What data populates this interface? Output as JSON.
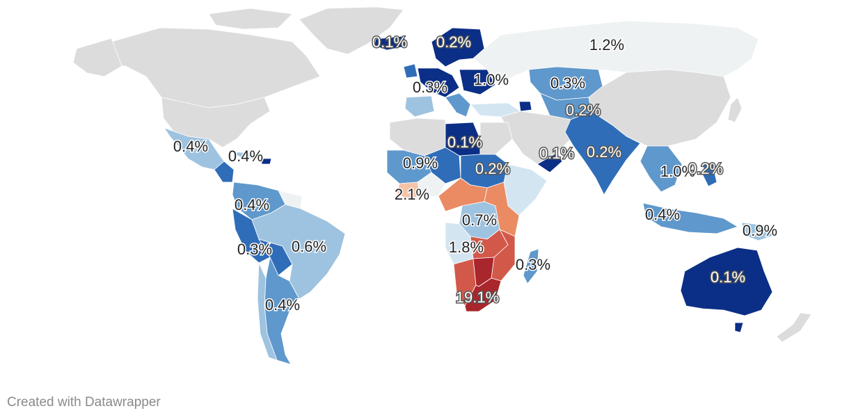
{
  "credit": "Created with Datawrapper",
  "colors": {
    "no_data": "#dcdcdc",
    "lowest": "#0b2f86",
    "low": "#2f6db8",
    "mid_low": "#5f98cc",
    "mid": "#9ec3e0",
    "pale": "#d4e5f2",
    "neutral": "#eef2f2",
    "warm_pale": "#f6c3a6",
    "warm": "#ea8b63",
    "high": "#d2594a",
    "highest": "#a9262c"
  },
  "labels": [
    {
      "text": "0.1%",
      "region": "iceland",
      "style": "light"
    },
    {
      "text": "0.2%",
      "region": "scandinavia",
      "style": "light"
    },
    {
      "text": "1.2%",
      "region": "russia",
      "style": "dark"
    },
    {
      "text": "1.0%",
      "region": "eastern-europe",
      "style": "dark"
    },
    {
      "text": "0.3%",
      "region": "western-europe",
      "style": "dark"
    },
    {
      "text": "0.3%",
      "region": "kazakhstan",
      "style": "dark"
    },
    {
      "text": "0.2%",
      "region": "central-asia",
      "style": "light"
    },
    {
      "text": "0.4%",
      "region": "mexico",
      "style": "dark"
    },
    {
      "text": "0.4%",
      "region": "caribbean",
      "style": "dark"
    },
    {
      "text": "0.1%",
      "region": "libya",
      "style": "light"
    },
    {
      "text": "0.9%",
      "region": "west-africa",
      "style": "dark"
    },
    {
      "text": "0.2%",
      "region": "sudan",
      "style": "light"
    },
    {
      "text": "0.1%",
      "region": "arabia",
      "style": "light"
    },
    {
      "text": "0.2%",
      "region": "india",
      "style": "light"
    },
    {
      "text": "1.0%",
      "region": "southeast-asia",
      "style": "dark"
    },
    {
      "text": "0.2%",
      "region": "philippines",
      "style": "light"
    },
    {
      "text": "2.1%",
      "region": "gulf-of-guinea",
      "style": "dark"
    },
    {
      "text": "0.4%",
      "region": "northern-south-america",
      "style": "dark"
    },
    {
      "text": "0.6%",
      "region": "brazil",
      "style": "dark"
    },
    {
      "text": "0.3%",
      "region": "peru",
      "style": "dark"
    },
    {
      "text": "0.4%",
      "region": "southern-cone",
      "style": "dark"
    },
    {
      "text": "0.7%",
      "region": "central-africa",
      "style": "dark"
    },
    {
      "text": "1.8%",
      "region": "angola",
      "style": "dark"
    },
    {
      "text": "0.3%",
      "region": "madagascar",
      "style": "dark"
    },
    {
      "text": "19.1%",
      "region": "southern-africa",
      "style": "light"
    },
    {
      "text": "0.4%",
      "region": "indonesia",
      "style": "dark"
    },
    {
      "text": "0.9%",
      "region": "papua",
      "style": "dark"
    },
    {
      "text": "0.1%",
      "region": "australia",
      "style": "light"
    }
  ]
}
